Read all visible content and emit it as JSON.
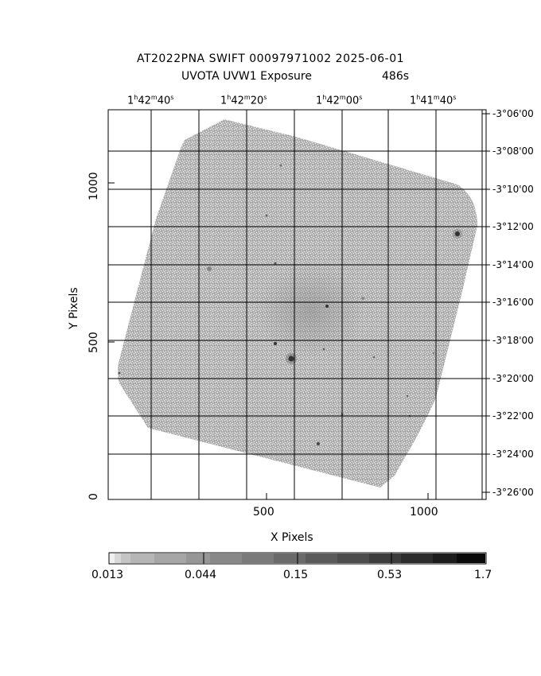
{
  "header": {
    "title": "AT2022PNA SWIFT 00097971002 2025-06-01",
    "subtitle_left": "UVOTA UVW1 Exposure",
    "subtitle_right": "486s"
  },
  "axes": {
    "xlabel": "X Pixels",
    "ylabel": "Y Pixels",
    "x_ticks": [
      "500",
      "1000"
    ],
    "y_ticks": [
      "0",
      "500",
      "1000"
    ],
    "ra_ticks": [
      {
        "h": "1",
        "m": "42",
        "s": "40"
      },
      {
        "h": "1",
        "m": "42",
        "s": "20"
      },
      {
        "h": "1",
        "m": "42",
        "s": "00"
      },
      {
        "h": "1",
        "m": "41",
        "s": "40"
      }
    ],
    "dec_ticks": [
      "-3°06'00",
      "-3°08'00",
      "-3°10'00",
      "-3°12'00",
      "-3°14'00",
      "-3°16'00",
      "-3°18'00",
      "-3°20'00",
      "-3°22'00",
      "-3°24'00",
      "-3°26'00"
    ]
  },
  "colorbar": {
    "labels": [
      "0.013",
      "0.044",
      "0.15",
      "0.53",
      "1.7"
    ]
  },
  "colors": {
    "field": "#a6a6a6",
    "background": "#ffffff",
    "grid": "#000000"
  }
}
